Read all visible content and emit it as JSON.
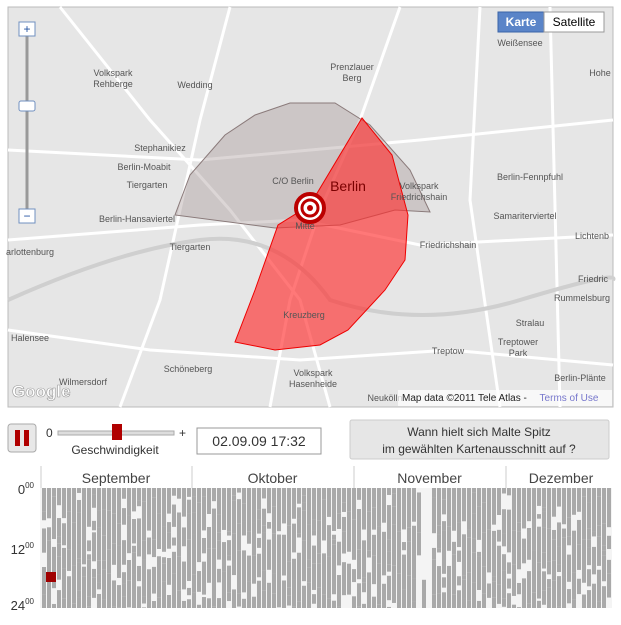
{
  "map": {
    "buttons": [
      "Karte",
      "Satellite"
    ],
    "labels": [
      "Weißensee",
      "Prenzlauer",
      "Berg",
      "Volkspark",
      "Rehberge",
      "Wedding",
      "Hohe",
      "Stephanikiez",
      "Berlin-Moabit",
      "Tiergarten",
      "C/O Berlin",
      "Berlin",
      "Volkspark",
      "Friedrichshain",
      "Berlin-Fennpfuhl",
      "Berlin-Hansaviertel",
      "Mitte",
      "Samariterviertel",
      "Lichtenb",
      "Tiergarten",
      "Friedrichshain",
      "arlottenburg",
      "Friedric",
      "Rummelsburg",
      "Kreuzberg",
      "Stralau",
      "Halensee",
      "Treptower",
      "Park",
      "Treptow",
      "Schöneberg",
      "Volkspark",
      "Hasenheide",
      "Wilmersdorf",
      "Berlin-Plänte",
      "Neukölln"
    ],
    "attribution": "Map data ©2011 Tele Atlas -",
    "terms": "Terms of Use",
    "logo": "Google"
  },
  "controls": {
    "slider_min": "0",
    "slider_max": "+",
    "slider_label": "Geschwindigkeit",
    "timestamp": "02.09.09 17:32",
    "question": [
      "Wann hielt sich Malte Spitz",
      "im gewählten Kartenausschnitt auf ?"
    ]
  },
  "timeline": {
    "months": [
      "September",
      "Oktober",
      "November",
      "Dezember"
    ],
    "hours": [
      {
        "main": "0",
        "sup": "00"
      },
      {
        "main": "12",
        "sup": "00"
      },
      {
        "main": "24",
        "sup": "00"
      }
    ]
  }
}
